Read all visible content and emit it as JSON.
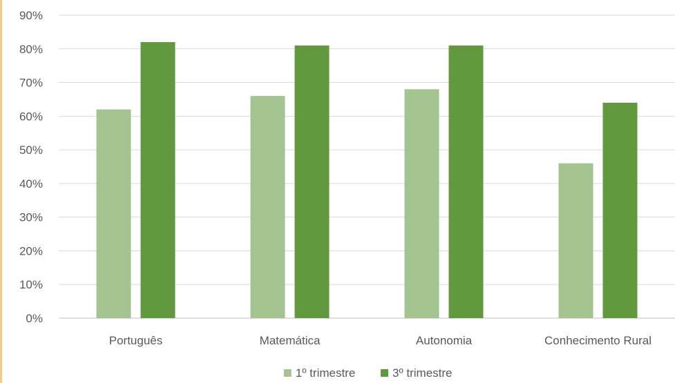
{
  "chart_data": {
    "type": "bar",
    "title": "",
    "xlabel": "",
    "ylabel": "",
    "categories": [
      "Português",
      "Matemática",
      "Autonomia",
      "Conhecimento Rural"
    ],
    "series": [
      {
        "name": "1º trimestre",
        "values": [
          62,
          66,
          68,
          46
        ],
        "color": "#a3c490"
      },
      {
        "name": "3º trimestre",
        "values": [
          82,
          81,
          81,
          64
        ],
        "color": "#62993e"
      }
    ],
    "ylim": [
      0,
      90
    ],
    "yticks": [
      "0%",
      "10%",
      "20%",
      "30%",
      "40%",
      "50%",
      "60%",
      "70%",
      "80%",
      "90%"
    ],
    "grid": true,
    "legend_position": "bottom"
  }
}
